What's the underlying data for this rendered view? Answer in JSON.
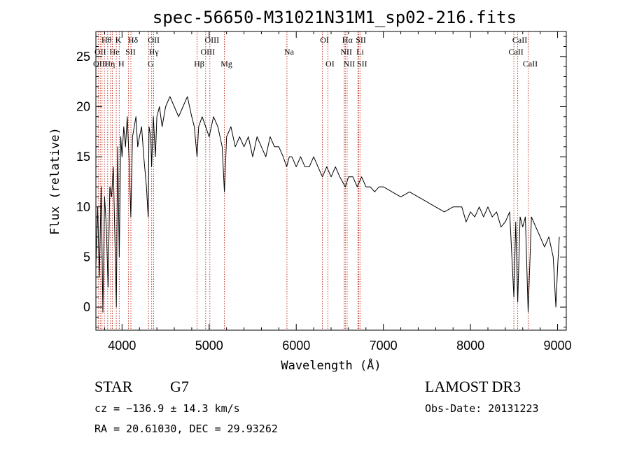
{
  "chart_data": {
    "type": "line",
    "title": "spec-56650-M31021N31M1_sp02-216.fits",
    "xlabel": "Wavelength (Å)",
    "ylabel": "Flux (relative)",
    "xlim": [
      3700,
      9100
    ],
    "ylim": [
      -2.3,
      27.5
    ],
    "xticks": [
      4000,
      5000,
      6000,
      7000,
      8000,
      9000
    ],
    "yticks": [
      0,
      5,
      10,
      15,
      20,
      25
    ],
    "series": [
      {
        "name": "spectrum",
        "x": [
          3700,
          3720,
          3740,
          3760,
          3780,
          3800,
          3820,
          3840,
          3860,
          3880,
          3900,
          3920,
          3935,
          3950,
          3968,
          3985,
          4000,
          4020,
          4040,
          4060,
          4080,
          4101,
          4120,
          4140,
          4160,
          4180,
          4200,
          4225,
          4250,
          4280,
          4300,
          4310,
          4330,
          4340,
          4360,
          4383,
          4400,
          4430,
          4460,
          4500,
          4550,
          4600,
          4650,
          4700,
          4750,
          4800,
          4830,
          4861,
          4880,
          4920,
          4960,
          5000,
          5050,
          5100,
          5150,
          5175,
          5200,
          5250,
          5300,
          5350,
          5400,
          5450,
          5500,
          5550,
          5600,
          5650,
          5700,
          5750,
          5800,
          5850,
          5890,
          5920,
          5950,
          6000,
          6050,
          6100,
          6150,
          6200,
          6250,
          6300,
          6350,
          6400,
          6450,
          6500,
          6563,
          6600,
          6650,
          6700,
          6750,
          6800,
          6850,
          6900,
          6950,
          7000,
          7100,
          7200,
          7300,
          7400,
          7500,
          7600,
          7700,
          7800,
          7900,
          7950,
          8000,
          8050,
          8100,
          8150,
          8200,
          8250,
          8300,
          8350,
          8400,
          8450,
          8498,
          8520,
          8542,
          8570,
          8600,
          8630,
          8662,
          8700,
          8750,
          8800,
          8850,
          8900,
          8950,
          8980,
          9000,
          9020
        ],
        "y": [
          4,
          10,
          3,
          12,
          -0.5,
          11,
          8,
          2,
          12,
          11,
          14,
          6,
          0,
          16,
          5,
          17,
          15,
          18,
          16,
          19,
          15,
          9,
          17,
          18,
          19,
          16,
          17,
          18,
          15,
          12,
          9,
          18,
          17,
          14,
          19,
          15,
          19,
          20,
          18,
          20,
          21,
          20,
          19,
          20,
          21,
          19,
          18,
          15,
          18,
          19,
          18,
          17,
          19,
          18,
          16,
          11.5,
          17,
          18,
          16,
          17,
          16,
          17,
          15,
          17,
          16,
          15,
          17,
          16,
          16,
          15,
          14,
          15,
          15,
          14,
          15,
          14,
          14,
          15,
          14,
          13,
          14,
          13,
          14,
          13,
          12,
          13,
          13,
          12,
          13,
          12,
          12,
          11.5,
          12,
          12,
          11.5,
          11,
          11.5,
          11,
          10.5,
          10,
          9.5,
          10,
          10,
          8.5,
          9.5,
          9,
          10,
          9,
          10,
          9,
          9.5,
          8,
          8.5,
          9.5,
          1,
          8.5,
          0.5,
          9,
          8,
          9,
          -0.5,
          9,
          8,
          7,
          6,
          7,
          5,
          0,
          4,
          7
        ]
      }
    ],
    "line_markers": [
      {
        "label": "Hθ",
        "wavelength": 3798,
        "row": 0
      },
      {
        "label": "K",
        "wavelength": 3934,
        "row": 0
      },
      {
        "label": "Hδ",
        "wavelength": 4102,
        "row": 0
      },
      {
        "label": "OII",
        "wavelength": 4340,
        "row": 0
      },
      {
        "label": "OIII",
        "wavelength": 5008,
        "row": 0
      },
      {
        "label": "Na",
        "wavelength": 5893,
        "row": 1
      },
      {
        "label": "OI",
        "wavelength": 6300,
        "row": 0
      },
      {
        "label": "Hα",
        "wavelength": 6563,
        "row": 0
      },
      {
        "label": "SII",
        "wavelength": 6718,
        "row": 0
      },
      {
        "label": "CaII",
        "wavelength": 8542,
        "row": 0
      },
      {
        "label": "OII",
        "wavelength": 3727,
        "row": 1
      },
      {
        "label": "He",
        "wavelength": 3889,
        "row": 1
      },
      {
        "label": "SII",
        "wavelength": 4073,
        "row": 1
      },
      {
        "label": "Hγ",
        "wavelength": 4340,
        "row": 1
      },
      {
        "label": "OIII",
        "wavelength": 4960,
        "row": 1
      },
      {
        "label": "NII",
        "wavelength": 6550,
        "row": 1
      },
      {
        "label": "Li",
        "wavelength": 6708,
        "row": 1
      },
      {
        "label": "CaII",
        "wavelength": 8498,
        "row": 1
      },
      {
        "label": "OIII",
        "wavelength": 3727,
        "row": 2
      },
      {
        "label": "Hη",
        "wavelength": 3835,
        "row": 2
      },
      {
        "label": "H",
        "wavelength": 3968,
        "row": 2
      },
      {
        "label": "G",
        "wavelength": 4305,
        "row": 2
      },
      {
        "label": "Hβ",
        "wavelength": 4861,
        "row": 2
      },
      {
        "label": "Mg",
        "wavelength": 5175,
        "row": 2
      },
      {
        "label": "OI",
        "wavelength": 6363,
        "row": 2
      },
      {
        "label": "NII",
        "wavelength": 6584,
        "row": 2
      },
      {
        "label": "SII",
        "wavelength": 6732,
        "row": 2
      },
      {
        "label": "CaII",
        "wavelength": 8662,
        "row": 2
      }
    ],
    "marker_lines": [
      3727,
      3750,
      3770,
      3798,
      3835,
      3869,
      3889,
      3934,
      3968,
      4073,
      4102,
      4305,
      4340,
      4363,
      4861,
      4960,
      5008,
      5175,
      5893,
      6300,
      6363,
      6550,
      6563,
      6584,
      6708,
      6718,
      6732,
      8498,
      8542,
      8662
    ]
  },
  "info": {
    "class_label": "STAR",
    "subclass": "G7",
    "survey": "LAMOST DR3",
    "cz": "cz = −136.9 ± 14.3 km/s",
    "obs_date": "Obs-Date: 20131223",
    "radec": "RA =  20.61030, DEC =  29.93262"
  },
  "colors": {
    "marker": "#c0392b",
    "line": "#000000",
    "background": "#ffffff"
  }
}
